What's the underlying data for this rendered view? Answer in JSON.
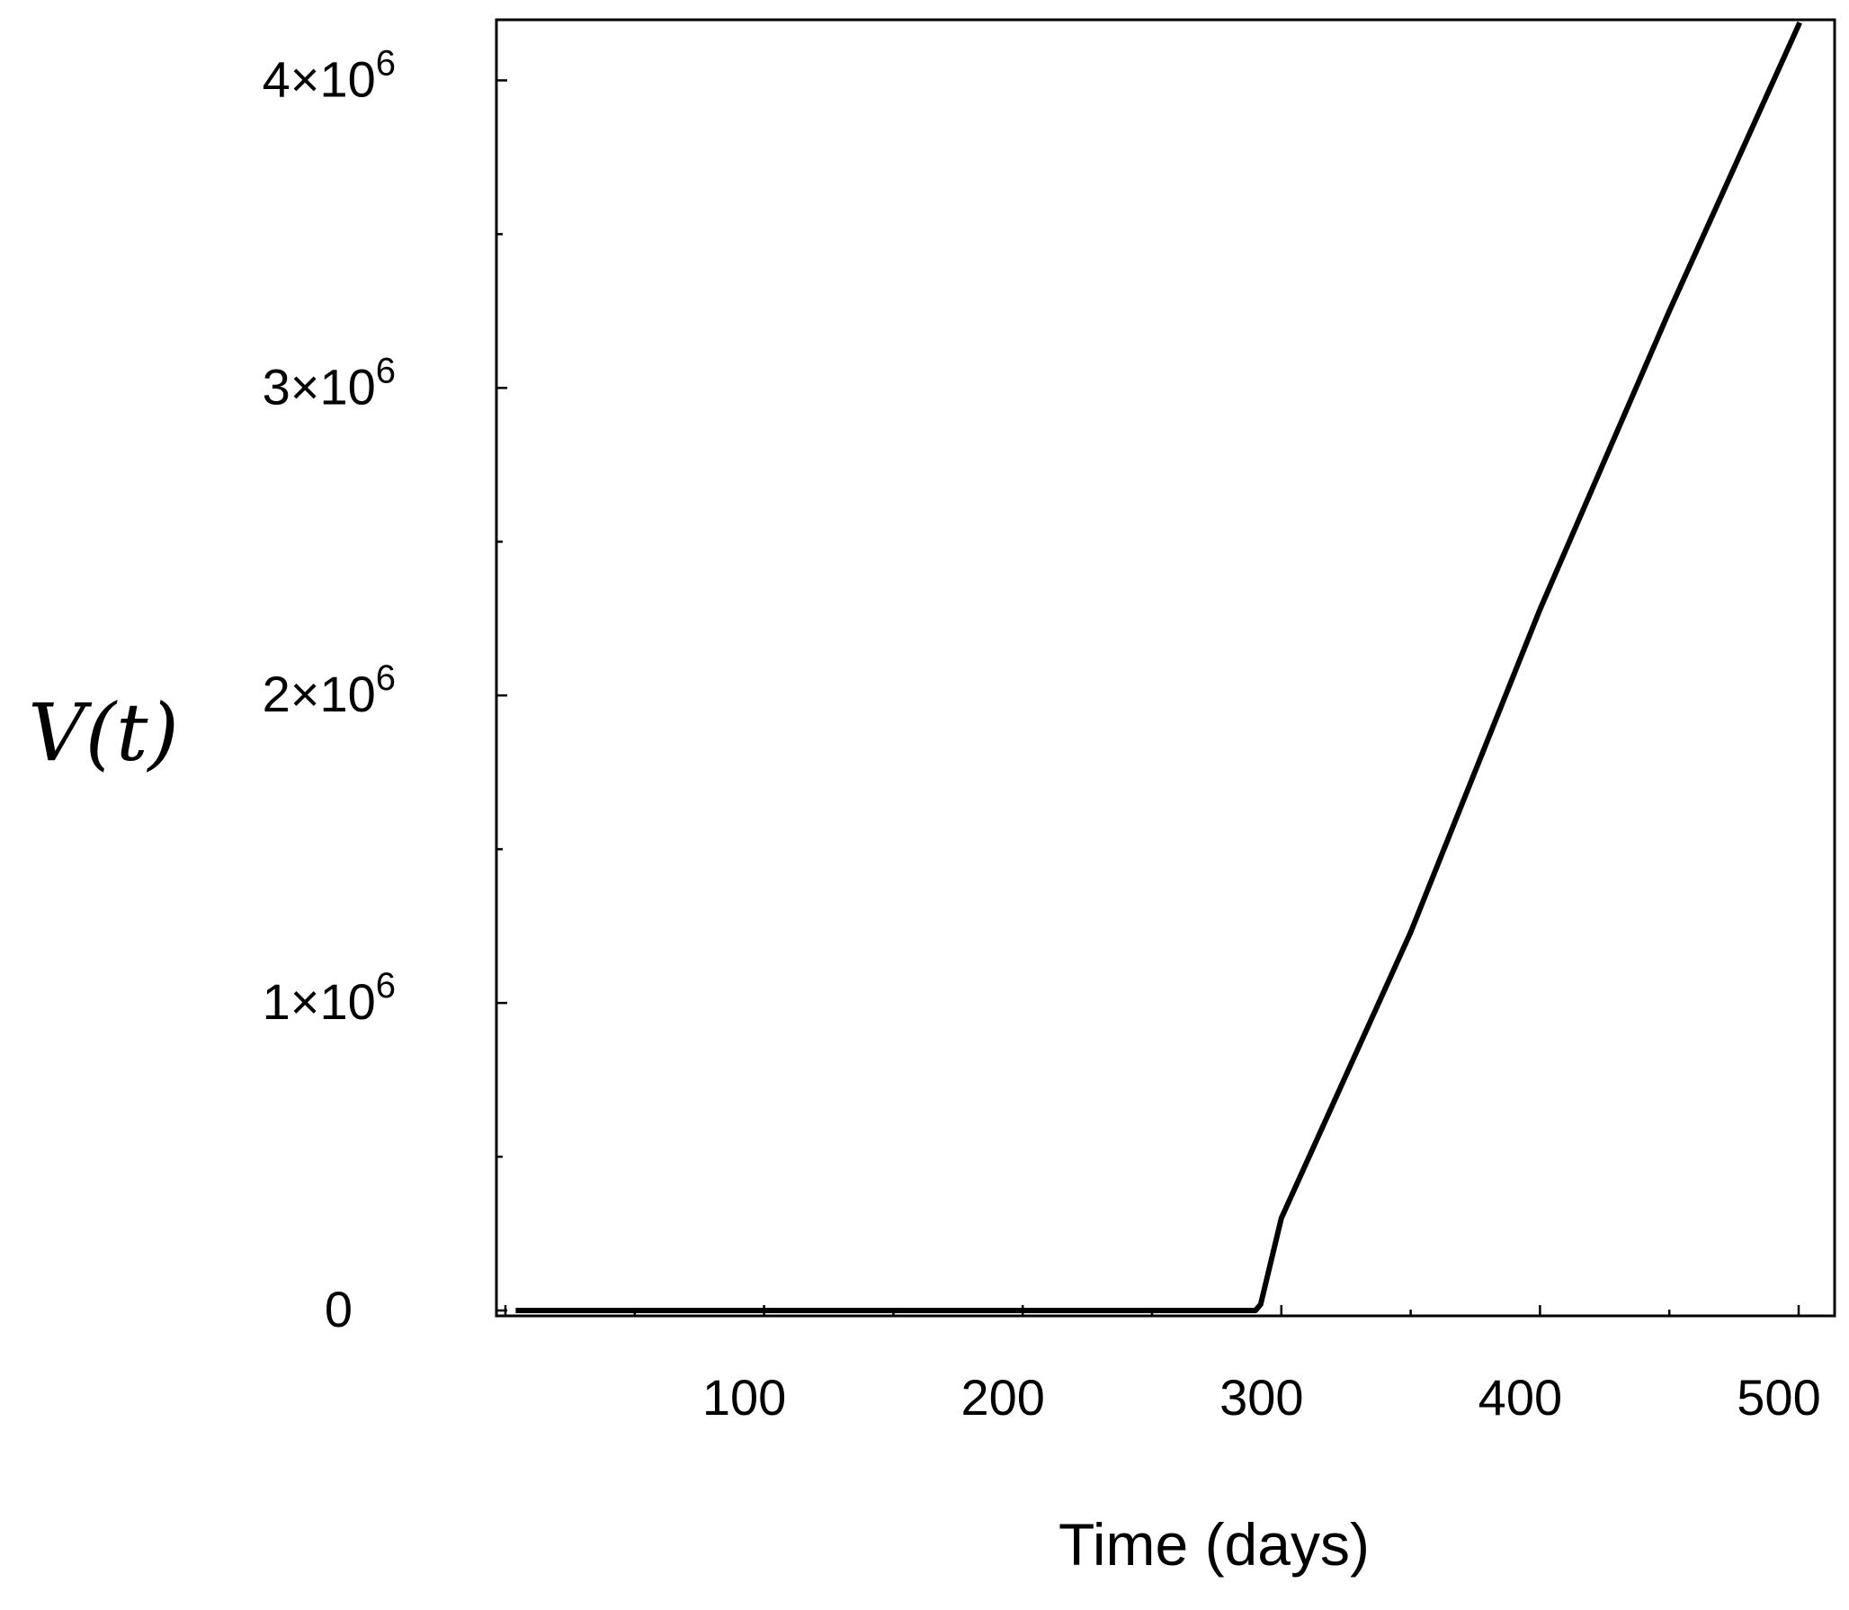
{
  "chart_data": {
    "type": "line",
    "title": "",
    "xlabel": "Time (days)",
    "ylabel": "V(t)",
    "xlim": [
      0,
      500
    ],
    "ylim": [
      0,
      4200000
    ],
    "x_ticks": [
      100,
      200,
      300,
      400,
      500
    ],
    "x_tick_labels": [
      "100",
      "200",
      "300",
      "400",
      "500"
    ],
    "y_ticks": [
      0,
      1000000,
      2000000,
      3000000,
      4000000
    ],
    "y_tick_labels": [
      {
        "mantissa": "0",
        "exp": ""
      },
      {
        "mantissa": "1×10",
        "exp": "6"
      },
      {
        "mantissa": "2×10",
        "exp": "6"
      },
      {
        "mantissa": "3×10",
        "exp": "6"
      },
      {
        "mantissa": "4×10",
        "exp": "6"
      }
    ],
    "grid": false,
    "legend": "none",
    "series": [
      {
        "color": "#000000",
        "points": [
          [
            5,
            0
          ],
          [
            290,
            0
          ],
          [
            292,
            20000
          ],
          [
            300,
            300000
          ],
          [
            350,
            1230000
          ],
          [
            400,
            2280000
          ],
          [
            450,
            3250000
          ],
          [
            500,
            4180000
          ]
        ]
      }
    ]
  }
}
